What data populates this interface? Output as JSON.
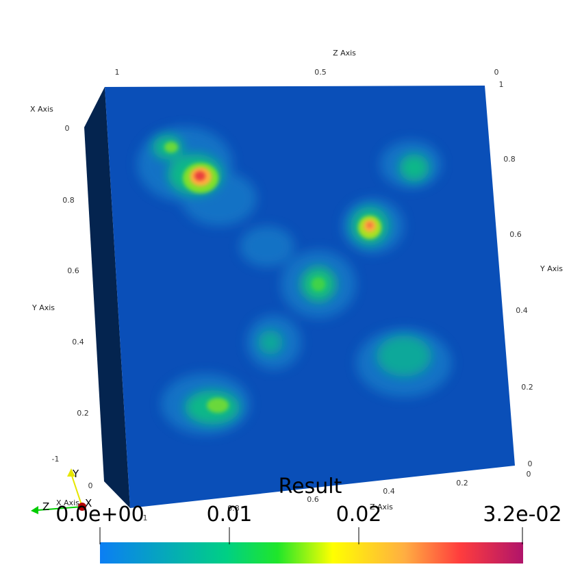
{
  "colors": {
    "background": "#ffffff",
    "front_face": "#0a4fb8",
    "side_face": "#04244f",
    "colormap": [
      "#0b7ef4",
      "#00c999",
      "#19e62c",
      "#ffff00",
      "#ffb040",
      "#ff3a3a",
      "#b31467"
    ]
  },
  "axes": {
    "z_axis_title": "Z Axis",
    "x_axis_title_top": "X Axis",
    "y_axis_title_left": "Y Axis",
    "y_axis_title_right": "Y Axis",
    "x_axis_title_bottom": "X Axis",
    "z_axis_title_bottom": "Z Axis",
    "top_ticks": [
      "1",
      "0.5",
      "0"
    ],
    "top_right_tick": "1",
    "x_left_tick": "0",
    "y_left_ticks": [
      "0.8",
      "0.6",
      "0.4",
      "0.2"
    ],
    "y_right_ticks": [
      "0.8",
      "0.6",
      "0.4",
      "0.2",
      "0"
    ],
    "bottom_right_tick": "0",
    "bottom_ticks": [
      "0.2",
      "0.4",
      "0.6",
      "0.8",
      "1"
    ],
    "bottom_left_ticks": [
      "-1",
      "0"
    ]
  },
  "orientation_triad": {
    "y_label": "Y",
    "x_label": "X",
    "z_label": "Z",
    "y_color": "#e6e600",
    "x_color": "#cc0000",
    "z_color": "#00cc00"
  },
  "colorbar": {
    "title": "Result",
    "labels": [
      "0.0e+00",
      "0.01",
      "0.02",
      "3.2e-02"
    ]
  }
}
